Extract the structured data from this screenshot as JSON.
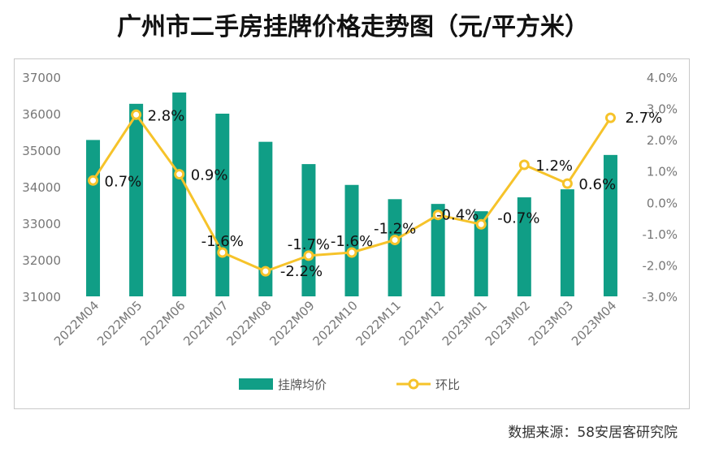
{
  "title": "广州市二手房挂牌价格走势图（元/平方米）",
  "source": "数据来源：58安居客研究院",
  "chart_data": {
    "type": "bar+line",
    "title": "广州市二手房挂牌价格走势图（元/平方米）",
    "categories": [
      "2022M04",
      "2022M05",
      "2022M06",
      "2022M07",
      "2022M08",
      "2022M09",
      "2022M10",
      "2022M11",
      "2022M12",
      "2023M01",
      "2023M02",
      "2023M03",
      "2023M04"
    ],
    "bar_series": {
      "name": "挂牌均价",
      "color": "#109e86",
      "values": [
        35280,
        36270,
        36580,
        36000,
        35230,
        34620,
        34050,
        33660,
        33530,
        33330,
        33710,
        33930,
        34870
      ]
    },
    "line_series": {
      "name": "环比",
      "color": "#f6c32a",
      "values": [
        0.7,
        2.8,
        0.9,
        -1.6,
        -2.2,
        -1.7,
        -1.6,
        -1.2,
        -0.4,
        -0.7,
        1.2,
        0.6,
        2.7
      ],
      "labels": [
        "0.7%",
        "2.8%",
        "0.9%",
        "-1.6%",
        "-2.2%",
        "-1.7%",
        "-1.6%",
        "-1.2%",
        "-0.4%",
        "-0.7%",
        "1.2%",
        "0.6%",
        "2.7%"
      ]
    },
    "y_left": {
      "min": 31000,
      "max": 37000,
      "ticks": [
        31000,
        32000,
        33000,
        34000,
        35000,
        36000,
        37000
      ],
      "tick_labels": [
        "31000",
        "32000",
        "33000",
        "34000",
        "35000",
        "36000",
        "37000"
      ]
    },
    "y_right": {
      "min": -3.0,
      "max": 4.0,
      "ticks": [
        -3.0,
        -2.0,
        -1.0,
        0.0,
        1.0,
        2.0,
        3.0,
        4.0
      ],
      "tick_labels": [
        "-3.0%",
        "-2.0%",
        "-1.0%",
        "0.0%",
        "1.0%",
        "2.0%",
        "3.0%",
        "4.0%"
      ]
    },
    "legend": {
      "position": "bottom",
      "items": [
        "挂牌均价",
        "环比"
      ]
    },
    "grid": false
  }
}
